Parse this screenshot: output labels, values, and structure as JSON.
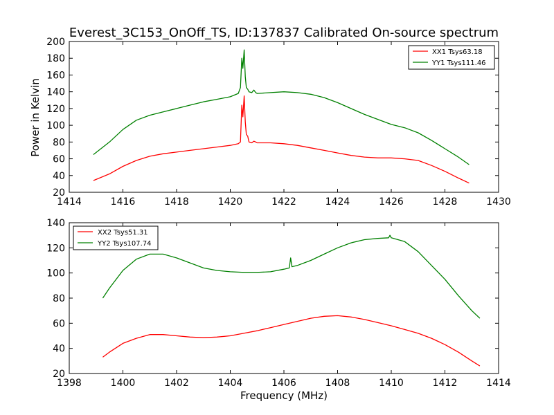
{
  "chart_data": [
    {
      "type": "line",
      "title": "Everest_3C153_OnOff_TS, ID:137837 Calibrated On-source spectrum",
      "xlabel": "",
      "ylabel": "Power in Kelvin",
      "xlim": [
        1414,
        1430
      ],
      "ylim": [
        20,
        200
      ],
      "xticks": [
        "1414",
        "1416",
        "1418",
        "1420",
        "1422",
        "1424",
        "1426",
        "1428",
        "1430"
      ],
      "yticks": [
        "20",
        "40",
        "60",
        "80",
        "100",
        "120",
        "140",
        "160",
        "180",
        "200"
      ],
      "legend_position": "upper right",
      "series": [
        {
          "name": "XX1 Tsys63.18",
          "color": "#ff0000",
          "x": [
            1414.9,
            1415.5,
            1416.0,
            1416.5,
            1417.0,
            1417.5,
            1418.0,
            1418.5,
            1419.0,
            1419.5,
            1420.0,
            1420.3,
            1420.38,
            1420.43,
            1420.47,
            1420.52,
            1420.56,
            1420.6,
            1420.65,
            1420.7,
            1420.8,
            1420.88,
            1420.95,
            1421.0,
            1421.5,
            1422.0,
            1422.5,
            1423.0,
            1423.5,
            1424.0,
            1424.5,
            1425.0,
            1425.5,
            1426.0,
            1426.5,
            1427.0,
            1427.5,
            1428.0,
            1428.5,
            1428.9
          ],
          "values": [
            34,
            42,
            51,
            58,
            63,
            66,
            68,
            70,
            72,
            74,
            76,
            78,
            80,
            124,
            110,
            135,
            104,
            89,
            87,
            80,
            79,
            81,
            80,
            79,
            79,
            78,
            76,
            73,
            70,
            67,
            64,
            62,
            61,
            61,
            60,
            58,
            52,
            45,
            37,
            31
          ]
        },
        {
          "name": "YY1 Tsys111.46",
          "color": "#008000",
          "x": [
            1414.9,
            1415.5,
            1416.0,
            1416.5,
            1417.0,
            1417.5,
            1418.0,
            1418.5,
            1419.0,
            1419.5,
            1420.0,
            1420.3,
            1420.38,
            1420.43,
            1420.47,
            1420.52,
            1420.56,
            1420.6,
            1420.65,
            1420.7,
            1420.8,
            1420.88,
            1420.95,
            1421.0,
            1421.5,
            1422.0,
            1422.5,
            1423.0,
            1423.5,
            1424.0,
            1424.5,
            1425.0,
            1425.5,
            1426.0,
            1426.5,
            1427.0,
            1427.5,
            1428.0,
            1428.5,
            1428.9
          ],
          "values": [
            65,
            80,
            95,
            106,
            112,
            116,
            120,
            124,
            128,
            131,
            134,
            138,
            145,
            180,
            168,
            190,
            158,
            145,
            143,
            140,
            139,
            142,
            139,
            138,
            139,
            140,
            139,
            137,
            133,
            127,
            120,
            113,
            107,
            101,
            97,
            91,
            82,
            72,
            62,
            53
          ]
        }
      ]
    },
    {
      "type": "line",
      "title": "",
      "xlabel": "Frequency (MHz)",
      "ylabel": "",
      "xlim": [
        1398,
        1414
      ],
      "ylim": [
        20,
        140
      ],
      "xticks": [
        "1398",
        "1400",
        "1402",
        "1404",
        "1406",
        "1408",
        "1410",
        "1412",
        "1414"
      ],
      "yticks": [
        "20",
        "40",
        "60",
        "80",
        "100",
        "120",
        "140"
      ],
      "legend_position": "upper left",
      "series": [
        {
          "name": "XX2 Tsys51.31",
          "color": "#ff0000",
          "x": [
            1399.25,
            1399.5,
            1400.0,
            1400.5,
            1401.0,
            1401.5,
            1402.0,
            1402.5,
            1403.0,
            1403.5,
            1404.0,
            1404.5,
            1405.0,
            1405.5,
            1406.0,
            1406.5,
            1407.0,
            1407.5,
            1408.0,
            1408.5,
            1409.0,
            1409.5,
            1410.0,
            1410.5,
            1411.0,
            1411.5,
            1412.0,
            1412.5,
            1413.0,
            1413.3
          ],
          "values": [
            33,
            37,
            44,
            48,
            51,
            51,
            50,
            49,
            48.5,
            49,
            50,
            52,
            54,
            56.5,
            59,
            61.5,
            64,
            65.5,
            66,
            65,
            63,
            60.5,
            58,
            55,
            52,
            48,
            43,
            37,
            30,
            26
          ]
        },
        {
          "name": "YY2 Tsys107.74",
          "color": "#008000",
          "x": [
            1399.25,
            1399.5,
            1400.0,
            1400.5,
            1401.0,
            1401.5,
            1402.0,
            1402.5,
            1403.0,
            1403.5,
            1404.0,
            1404.5,
            1405.0,
            1405.5,
            1406.0,
            1406.2,
            1406.25,
            1406.3,
            1406.5,
            1407.0,
            1407.5,
            1408.0,
            1408.5,
            1409.0,
            1409.5,
            1409.9,
            1409.95,
            1410.0,
            1410.5,
            1411.0,
            1411.5,
            1412.0,
            1412.5,
            1413.0,
            1413.3
          ],
          "values": [
            80,
            88,
            102,
            111,
            115,
            115,
            112,
            108,
            104,
            102,
            101,
            100.5,
            100.5,
            101,
            103,
            104,
            112,
            105,
            106,
            110,
            115,
            120,
            124,
            126.5,
            127.5,
            128,
            130,
            128,
            125,
            117,
            106,
            95,
            82,
            70,
            64
          ]
        }
      ]
    }
  ]
}
